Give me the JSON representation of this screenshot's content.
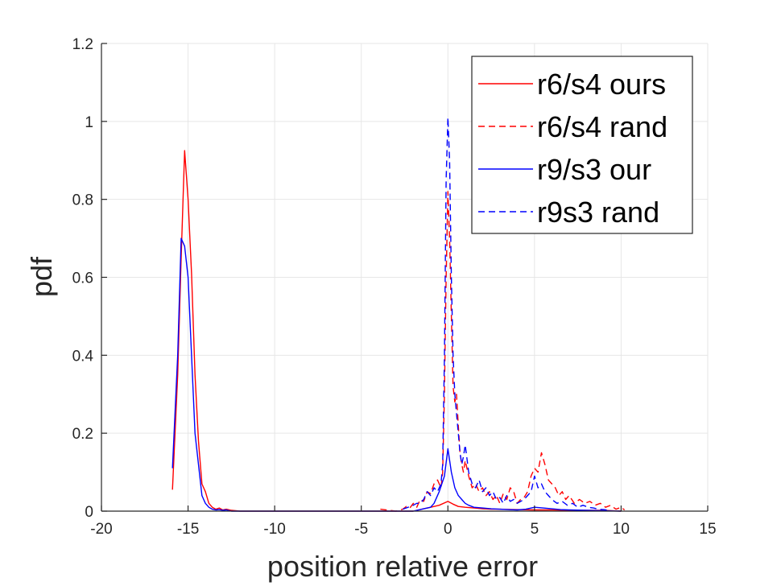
{
  "chart_data": {
    "type": "line",
    "title": "",
    "xlabel": "position relative error",
    "ylabel": "pdf",
    "xlim": [
      -20,
      15
    ],
    "ylim": [
      0,
      1.2
    ],
    "xticks": [
      -20,
      -15,
      -10,
      -5,
      0,
      5,
      10,
      15
    ],
    "yticks": [
      0,
      0.2,
      0.4,
      0.6,
      0.8,
      1,
      1.2
    ],
    "xtick_labels": [
      "-20",
      "-15",
      "-10",
      "-5",
      "0",
      "5",
      "10",
      "15"
    ],
    "ytick_labels": [
      "0",
      "0.2",
      "0.4",
      "0.6",
      "0.8",
      "1",
      "1.2"
    ],
    "grid": true,
    "legend_position": "top-right",
    "series": [
      {
        "name": "r6/s4 ours",
        "color": "#ff0000",
        "dash": "solid",
        "x": [
          -15.9,
          -15.6,
          -15.4,
          -15.2,
          -15.0,
          -14.8,
          -14.6,
          -14.4,
          -14.2,
          -14.0,
          -13.8,
          -13.6,
          -13.4,
          -13.2,
          -13.0,
          -12.8,
          -12.5,
          -12.0,
          -10.0,
          -5.0,
          -2.0,
          -1.5,
          -1.0,
          -0.5,
          0.0,
          0.3,
          0.6,
          1.0,
          1.5,
          2.0,
          2.5,
          3.0,
          4.0,
          5.0,
          6.0,
          7.0,
          8.0,
          9.0,
          10.0
        ],
        "y": [
          0.055,
          0.35,
          0.65,
          0.925,
          0.8,
          0.61,
          0.35,
          0.18,
          0.07,
          0.05,
          0.02,
          0.01,
          0.005,
          0.008,
          0.003,
          0.005,
          0.002,
          0.0,
          0.0,
          0.0,
          0.0,
          0.005,
          0.01,
          0.015,
          0.025,
          0.018,
          0.012,
          0.01,
          0.008,
          0.006,
          0.005,
          0.005,
          0.004,
          0.003,
          0.003,
          0.002,
          0.002,
          0.002,
          0.0
        ]
      },
      {
        "name": "r6/s4 rand",
        "color": "#ff0000",
        "dash": "dashed",
        "x": [
          -3.9,
          -3.0,
          -2.6,
          -2.4,
          -2.2,
          -2.0,
          -1.8,
          -1.6,
          -1.4,
          -1.2,
          -1.0,
          -0.8,
          -0.6,
          -0.4,
          -0.3,
          -0.2,
          -0.1,
          0.0,
          0.1,
          0.2,
          0.3,
          0.4,
          0.5,
          0.6,
          0.7,
          0.8,
          0.9,
          1.0,
          1.2,
          1.4,
          1.6,
          1.8,
          2.0,
          2.2,
          2.4,
          2.6,
          2.8,
          3.0,
          3.2,
          3.4,
          3.6,
          3.8,
          4.0,
          4.2,
          4.4,
          4.6,
          4.8,
          5.0,
          5.2,
          5.4,
          5.6,
          5.8,
          6.0,
          6.2,
          6.4,
          6.6,
          6.8,
          7.0,
          7.3,
          7.6,
          7.9,
          8.2,
          8.5,
          8.8,
          9.1,
          9.4,
          9.7,
          10.0,
          10.2
        ],
        "y": [
          0.005,
          0.0,
          0.005,
          0.012,
          0.008,
          0.02,
          0.01,
          0.03,
          0.025,
          0.05,
          0.045,
          0.07,
          0.08,
          0.06,
          0.1,
          0.3,
          0.6,
          0.82,
          0.7,
          0.5,
          0.32,
          0.28,
          0.3,
          0.22,
          0.15,
          0.12,
          0.1,
          0.13,
          0.09,
          0.06,
          0.07,
          0.05,
          0.06,
          0.04,
          0.05,
          0.03,
          0.04,
          0.02,
          0.045,
          0.03,
          0.06,
          0.05,
          0.02,
          0.03,
          0.035,
          0.05,
          0.09,
          0.11,
          0.1,
          0.15,
          0.12,
          0.08,
          0.07,
          0.06,
          0.04,
          0.05,
          0.03,
          0.04,
          0.02,
          0.03,
          0.02,
          0.025,
          0.015,
          0.02,
          0.01,
          0.015,
          0.005,
          0.01,
          0.003
        ]
      },
      {
        "name": "r9/s3 our",
        "color": "#0000ff",
        "dash": "solid",
        "x": [
          -15.9,
          -15.6,
          -15.4,
          -15.2,
          -15.0,
          -14.8,
          -14.6,
          -14.4,
          -14.2,
          -14.0,
          -13.8,
          -13.6,
          -13.4,
          -13.2,
          -13.0,
          -12.8,
          -12.5,
          -12.0,
          -10.0,
          -5.0,
          -2.0,
          -1.5,
          -1.0,
          -0.8,
          -0.5,
          -0.2,
          0.0,
          0.2,
          0.4,
          0.6,
          0.8,
          1.0,
          1.2,
          1.5,
          2.0,
          2.5,
          3.0,
          3.5,
          4.0,
          4.5,
          5.0,
          5.5,
          6.0,
          6.5,
          7.0,
          8.0,
          9.0,
          10.0
        ],
        "y": [
          0.11,
          0.4,
          0.7,
          0.68,
          0.6,
          0.4,
          0.2,
          0.12,
          0.04,
          0.02,
          0.01,
          0.005,
          0.003,
          0.004,
          0.002,
          0.003,
          0.0,
          0.0,
          0.0,
          0.0,
          0.0,
          0.005,
          0.01,
          0.02,
          0.05,
          0.09,
          0.16,
          0.1,
          0.06,
          0.04,
          0.03,
          0.02,
          0.015,
          0.01,
          0.008,
          0.006,
          0.005,
          0.004,
          0.003,
          0.005,
          0.01,
          0.008,
          0.006,
          0.004,
          0.003,
          0.002,
          0.001,
          0.0
        ]
      },
      {
        "name": "r9s3 rand",
        "color": "#0000ff",
        "dash": "dashed",
        "x": [
          -2.6,
          -2.3,
          -2.0,
          -1.8,
          -1.6,
          -1.4,
          -1.2,
          -1.0,
          -0.8,
          -0.6,
          -0.4,
          -0.3,
          -0.2,
          -0.1,
          0.0,
          0.1,
          0.2,
          0.3,
          0.4,
          0.5,
          0.6,
          0.7,
          0.8,
          0.9,
          1.0,
          1.2,
          1.4,
          1.6,
          1.8,
          2.0,
          2.2,
          2.4,
          2.6,
          2.8,
          3.0,
          3.2,
          3.4,
          3.6,
          3.8,
          4.0,
          4.2,
          4.4,
          4.6,
          4.8,
          5.0,
          5.2,
          5.4,
          5.6,
          5.8,
          6.0,
          6.3,
          6.6,
          6.9,
          7.2,
          7.5,
          7.8,
          8.1,
          8.4,
          8.7,
          9.0,
          9.3
        ],
        "y": [
          0.005,
          0.01,
          0.015,
          0.02,
          0.02,
          0.03,
          0.05,
          0.04,
          0.06,
          0.05,
          0.07,
          0.12,
          0.4,
          0.85,
          1.01,
          0.9,
          0.6,
          0.4,
          0.3,
          0.25,
          0.2,
          0.15,
          0.12,
          0.14,
          0.17,
          0.1,
          0.07,
          0.06,
          0.08,
          0.05,
          0.06,
          0.04,
          0.05,
          0.03,
          0.035,
          0.02,
          0.04,
          0.025,
          0.03,
          0.02,
          0.025,
          0.03,
          0.04,
          0.05,
          0.09,
          0.06,
          0.07,
          0.05,
          0.04,
          0.03,
          0.02,
          0.025,
          0.015,
          0.02,
          0.01,
          0.015,
          0.01,
          0.008,
          0.005,
          0.004,
          0.002
        ]
      }
    ]
  }
}
